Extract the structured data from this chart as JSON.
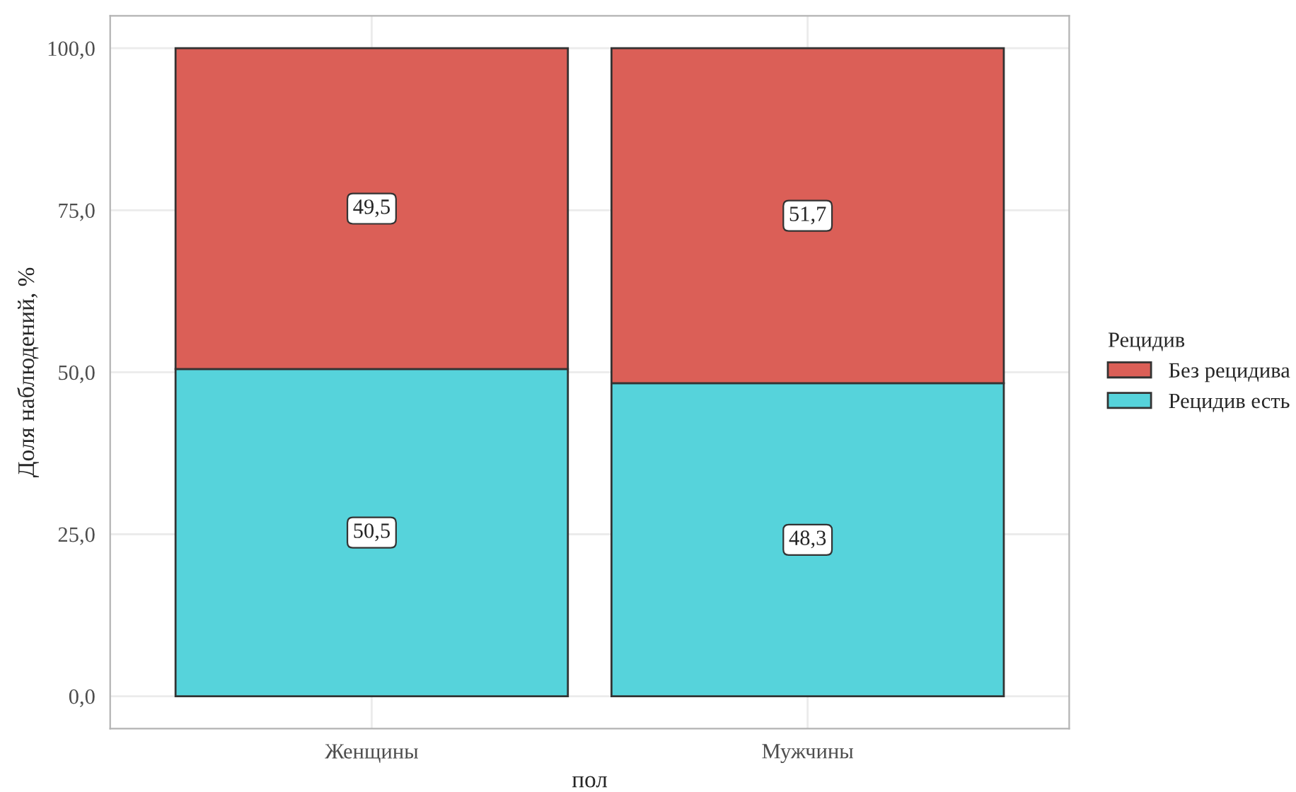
{
  "chart_data": {
    "type": "bar",
    "stacked": true,
    "xlabel": "пол",
    "ylabel": "Доля наблюдений, %",
    "legend_title": "Рецидив",
    "legend": "right",
    "grid": true,
    "categories": [
      "Женщины",
      "Мужчины"
    ],
    "series": [
      {
        "name": "Рецидив есть",
        "color": "#56d3db",
        "values": [
          50.5,
          48.3
        ],
        "value_labels": [
          "50,5",
          "48,3"
        ]
      },
      {
        "name": "Без рецидива",
        "color": "#db5f57",
        "values": [
          49.5,
          51.7
        ],
        "value_labels": [
          "49,5",
          "51,7"
        ]
      }
    ],
    "ylim": [
      -5,
      105
    ],
    "yticks": [
      {
        "value": 0,
        "label": "0,0"
      },
      {
        "value": 25,
        "label": "25,0"
      },
      {
        "value": 50,
        "label": "50,0"
      },
      {
        "value": 75,
        "label": "75,0"
      },
      {
        "value": 100,
        "label": "100,0"
      }
    ]
  }
}
